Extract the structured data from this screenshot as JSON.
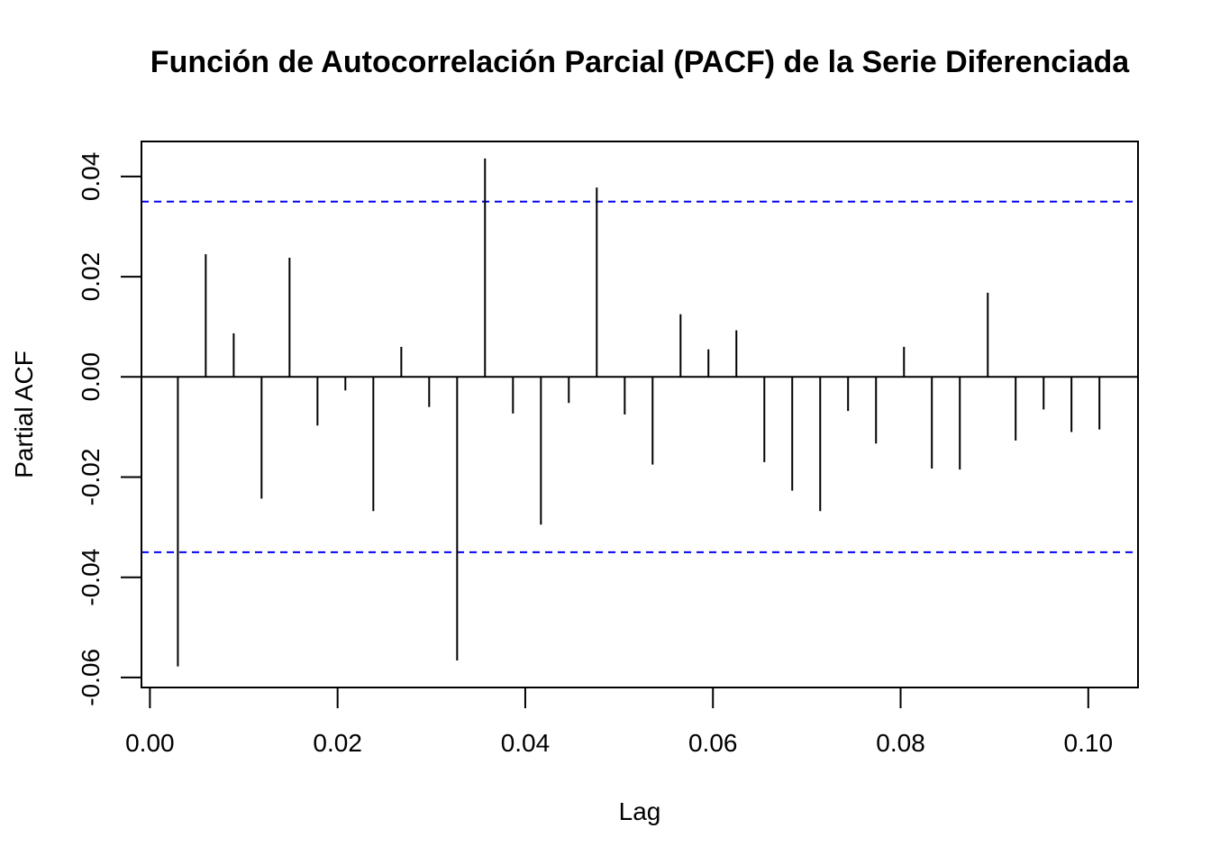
{
  "chart_data": {
    "type": "bar",
    "title": "Función de Autocorrelación Parcial (PACF) de la Serie Diferenciada",
    "xlabel": "Lag",
    "ylabel": "Partial ACF",
    "xlim": [
      -0.0009,
      0.1053
    ],
    "ylim": [
      -0.062,
      0.047
    ],
    "x_ticks": [
      0.0,
      0.02,
      0.04,
      0.06,
      0.08,
      0.1
    ],
    "x_tick_labels": [
      "0.00",
      "0.02",
      "0.04",
      "0.06",
      "0.08",
      "0.10"
    ],
    "y_ticks": [
      -0.06,
      -0.04,
      -0.02,
      0.0,
      0.02,
      0.04
    ],
    "y_tick_labels": [
      "-0.06",
      "-0.04",
      "-0.02",
      "0.00",
      "0.02",
      "0.04"
    ],
    "confidence_bound": 0.035,
    "confidence_color": "#0000FF",
    "bar_color": "#000000",
    "grid": false,
    "x": [
      0.00298,
      0.00595,
      0.00893,
      0.0119,
      0.01488,
      0.01786,
      0.02083,
      0.02381,
      0.02679,
      0.02976,
      0.03274,
      0.03571,
      0.03869,
      0.04167,
      0.04464,
      0.04762,
      0.0506,
      0.05357,
      0.05655,
      0.05952,
      0.0625,
      0.06548,
      0.06845,
      0.07143,
      0.0744,
      0.07738,
      0.08036,
      0.08333,
      0.08631,
      0.08929,
      0.09226,
      0.09524,
      0.09821,
      0.10119
    ],
    "values": [
      -0.0578,
      0.0245,
      0.0087,
      -0.0243,
      0.0238,
      -0.0097,
      -0.0027,
      -0.0268,
      0.006,
      -0.006,
      -0.0566,
      0.0436,
      -0.0073,
      -0.0295,
      -0.0052,
      0.0378,
      -0.0075,
      -0.0175,
      0.0125,
      0.0055,
      0.0093,
      -0.017,
      -0.0227,
      -0.0268,
      -0.0068,
      -0.0133,
      0.006,
      -0.0183,
      -0.0185,
      0.0168,
      -0.0127,
      -0.0065,
      -0.011,
      -0.0105
    ]
  }
}
